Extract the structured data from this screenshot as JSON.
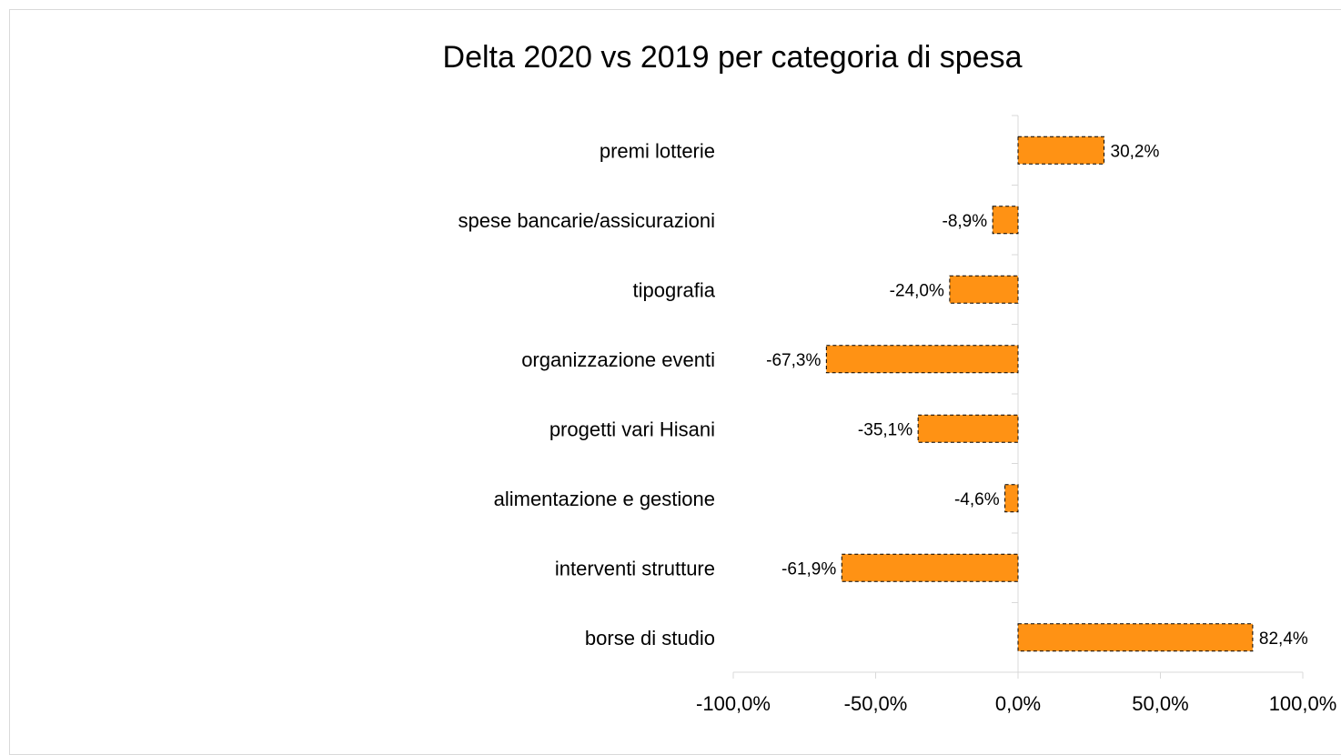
{
  "chart_data": {
    "type": "bar",
    "orientation": "horizontal",
    "title": "Delta 2020 vs 2019 per categoria di spesa",
    "categories": [
      "premi lotterie",
      "spese bancarie/assicurazioni",
      "tipografia",
      "organizzazione eventi",
      "progetti vari Hisani",
      "alimentazione e gestione",
      "interventi strutture",
      "borse di studio"
    ],
    "values": [
      30.2,
      -8.9,
      -24.0,
      -67.3,
      -35.1,
      -4.6,
      -61.9,
      82.4
    ],
    "data_labels": [
      "30,2%",
      "-8,9%",
      "-24,0%",
      "-67,3%",
      "-35,1%",
      "-4,6%",
      "-61,9%",
      "82,4%"
    ],
    "xlim": [
      -100,
      100
    ],
    "x_ticks": [
      -100,
      -50,
      0,
      50,
      100
    ],
    "x_tick_labels": [
      "-100,0%",
      "-50,0%",
      "0,0%",
      "50,0%",
      "100,0%"
    ],
    "bar_color": "#ff9214",
    "bar_border": "dashed",
    "grid": false,
    "legend": "none"
  }
}
